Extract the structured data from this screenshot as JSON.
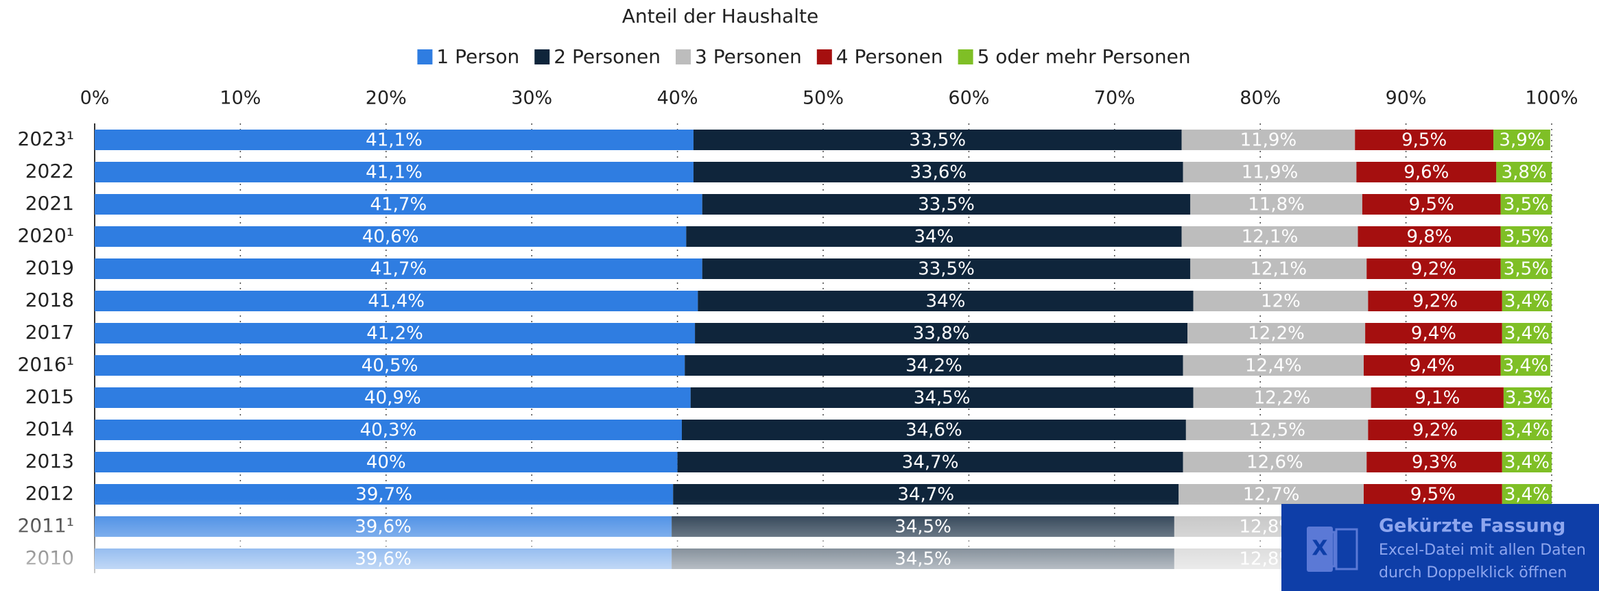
{
  "chart_data": {
    "type": "stacked_bar_horizontal",
    "xlabel": "Anteil der Haushalte",
    "categories": [
      "2023¹",
      "2022",
      "2021",
      "2020¹",
      "2019",
      "2018",
      "2017",
      "2016¹",
      "2015",
      "2014",
      "2013",
      "2012",
      "2011¹",
      "2010"
    ],
    "series": [
      {
        "name": "1 Person",
        "color": "#2f7de1",
        "values": [
          41.1,
          41.1,
          41.7,
          40.6,
          41.7,
          41.4,
          41.2,
          40.5,
          40.9,
          40.3,
          40,
          39.7,
          39.6,
          39.6
        ],
        "value_labels": [
          "41,1%",
          "41,1%",
          "41,7%",
          "40,6%",
          "41,7%",
          "41,4%",
          "41,2%",
          "40,5%",
          "40,9%",
          "40,3%",
          "40%",
          "39,7%",
          "39,6%",
          "39,6%"
        ]
      },
      {
        "name": "2 Personen",
        "color": "#0f253b",
        "values": [
          33.5,
          33.6,
          33.5,
          34,
          33.5,
          34,
          33.8,
          34.2,
          34.5,
          34.6,
          34.7,
          34.7,
          34.5,
          34.5
        ],
        "value_labels": [
          "33,5%",
          "33,6%",
          "33,5%",
          "34%",
          "33,5%",
          "34%",
          "33,8%",
          "34,2%",
          "34,5%",
          "34,6%",
          "34,7%",
          "34,7%",
          "34,5%",
          "34,5%"
        ]
      },
      {
        "name": "3 Personen",
        "color": "#bdbdbd",
        "values": [
          11.9,
          11.9,
          11.8,
          12.1,
          12.1,
          12,
          12.2,
          12.4,
          12.2,
          12.5,
          12.6,
          12.7,
          12.8,
          12.8
        ],
        "value_labels": [
          "11,9%",
          "11,9%",
          "11,8%",
          "12,1%",
          "12,1%",
          "12%",
          "12,2%",
          "12,4%",
          "12,2%",
          "12,5%",
          "12,6%",
          "12,7%",
          "12,8%",
          "12,8%"
        ]
      },
      {
        "name": "4 Personen",
        "color": "#a50f0f",
        "values": [
          9.5,
          9.6,
          9.5,
          9.8,
          9.2,
          9.2,
          9.4,
          9.4,
          9.1,
          9.2,
          9.3,
          9.5,
          null,
          null
        ],
        "value_labels": [
          "9,5%",
          "9,6%",
          "9,5%",
          "9,8%",
          "9,2%",
          "9,2%",
          "9,4%",
          "9,4%",
          "9,1%",
          "9,2%",
          "9,3%",
          "9,5%",
          null,
          null
        ]
      },
      {
        "name": "5 oder mehr Personen",
        "color": "#7fbf26",
        "values": [
          3.9,
          3.8,
          3.5,
          3.5,
          3.5,
          3.4,
          3.4,
          3.4,
          3.3,
          3.4,
          3.4,
          3.4,
          null,
          null
        ],
        "value_labels": [
          "3,9%",
          "3,8%",
          "3,5%",
          "3,5%",
          "3,5%",
          "3,4%",
          "3,4%",
          "3,4%",
          "3,3%",
          "3,4%",
          "3,4%",
          "3,4%",
          null,
          null
        ]
      }
    ],
    "xlim": [
      0,
      100
    ],
    "xticks": [
      {
        "value": 0,
        "label": "0%"
      },
      {
        "value": 10,
        "label": "10%"
      },
      {
        "value": 20,
        "label": "20%"
      },
      {
        "value": 30,
        "label": "30%"
      },
      {
        "value": 40,
        "label": "40%"
      },
      {
        "value": 50,
        "label": "50%"
      },
      {
        "value": 60,
        "label": "60%"
      },
      {
        "value": 70,
        "label": "70%"
      },
      {
        "value": 80,
        "label": "80%"
      },
      {
        "value": 90,
        "label": "90%"
      },
      {
        "value": 100,
        "label": "100%"
      }
    ],
    "grid": true
  },
  "overlay": {
    "title": "Gekürzte Fassung",
    "line1": "Excel-Datei mit allen Daten",
    "line2": "durch Doppelklick öffnen"
  }
}
